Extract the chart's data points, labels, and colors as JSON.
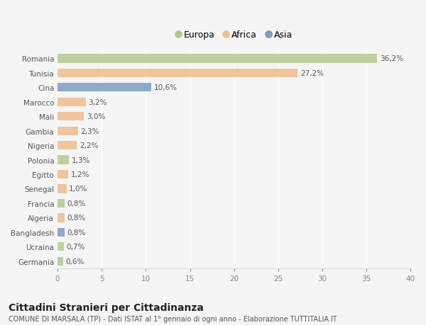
{
  "categories": [
    "Romania",
    "Tunisia",
    "Cina",
    "Marocco",
    "Mali",
    "Gambia",
    "Nigeria",
    "Polonia",
    "Egitto",
    "Senegal",
    "Francia",
    "Algeria",
    "Bangladesh",
    "Ucraina",
    "Germania"
  ],
  "values": [
    36.2,
    27.2,
    10.6,
    3.2,
    3.0,
    2.3,
    2.2,
    1.3,
    1.2,
    1.0,
    0.8,
    0.8,
    0.8,
    0.7,
    0.6
  ],
  "colors": [
    "#b5c98e",
    "#f0bc8e",
    "#7b9dbf",
    "#f0bc8e",
    "#f0bc8e",
    "#f0bc8e",
    "#f0bc8e",
    "#b5c98e",
    "#f0bc8e",
    "#f0bc8e",
    "#b5c98e",
    "#f0bc8e",
    "#7b9dbf",
    "#b5c98e",
    "#b5c98e"
  ],
  "labels": [
    "36,2%",
    "27,2%",
    "10,6%",
    "3,2%",
    "3,0%",
    "2,3%",
    "2,2%",
    "1,3%",
    "1,2%",
    "1,0%",
    "0,8%",
    "0,8%",
    "0,8%",
    "0,7%",
    "0,6%"
  ],
  "legend_labels": [
    "Europa",
    "Africa",
    "Asia"
  ],
  "legend_colors": [
    "#b5c98e",
    "#f0bc8e",
    "#7b9dbf"
  ],
  "xlim": [
    0,
    40
  ],
  "xticks": [
    0,
    5,
    10,
    15,
    20,
    25,
    30,
    35,
    40
  ],
  "title": "Cittadini Stranieri per Cittadinanza",
  "subtitle": "COMUNE DI MARSALA (TP) - Dati ISTAT al 1° gennaio di ogni anno - Elaborazione TUTTITALIA.IT",
  "background_color": "#f5f5f5",
  "bar_height": 0.6,
  "grid_color": "#ffffff",
  "label_fontsize": 7.5,
  "ytick_fontsize": 7.5,
  "xtick_fontsize": 7.5,
  "title_fontsize": 10,
  "subtitle_fontsize": 7
}
